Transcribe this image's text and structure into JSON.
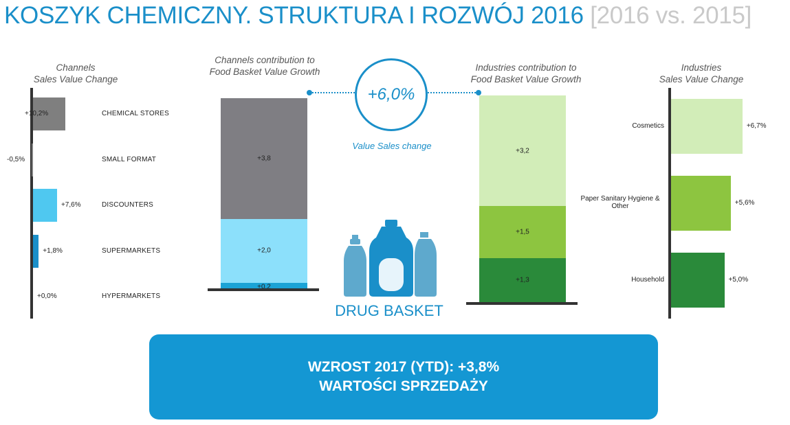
{
  "title": {
    "main": "KOSZYK CHEMICZNY. STRUKTURA I ROZWÓJ 2016",
    "sub": "[2016 vs. 2015]"
  },
  "chart_data": [
    {
      "type": "bar",
      "orientation": "horizontal",
      "title": "Channels\nSales Value Change",
      "categories": [
        "CHEMICAL STORES",
        "SMALL FORMAT",
        "DISCOUNTERS",
        "SUPERMARKETS",
        "HYPERMARKETS"
      ],
      "values": [
        10.2,
        -0.5,
        7.6,
        1.8,
        0.0
      ],
      "labels": [
        "+10,2%",
        "-0,5%",
        "+7,6%",
        "+1,8%",
        "+0,0%"
      ],
      "colors": [
        "#7f7f7f",
        "#7f7f7f",
        "#4fc8f0",
        "#1a8fc9",
        "#1a8fc9"
      ],
      "xlim": [
        -1,
        30
      ]
    },
    {
      "type": "bar",
      "stacked": true,
      "title": "Channels contribution to\nFood Basket Value Growth",
      "series": [
        {
          "values": [
            3.8
          ],
          "label": "+3,8",
          "color": "#7f7e83"
        },
        {
          "values": [
            2.0
          ],
          "label": "+2,0",
          "color": "#8ce0fb"
        },
        {
          "values": [
            0.2
          ],
          "label": "+0,2",
          "color": "#1ba3d6"
        }
      ],
      "ylim": [
        0,
        6
      ]
    },
    {
      "type": "bar",
      "stacked": true,
      "title": "Industries contribution to\nFood Basket Value Growth",
      "series": [
        {
          "values": [
            3.2
          ],
          "label": "+3,2",
          "color": "#d2edb8"
        },
        {
          "values": [
            1.5
          ],
          "label": "+1,5",
          "color": "#8dc540"
        },
        {
          "values": [
            1.3
          ],
          "label": "+1,3",
          "color": "#2a8a3a"
        }
      ],
      "ylim": [
        0,
        6
      ]
    },
    {
      "type": "bar",
      "orientation": "horizontal",
      "title": "Industries\nSales Value Change",
      "categories": [
        "Cosmetics",
        "Paper Sanitary Hygiene & Other",
        "Household"
      ],
      "values": [
        6.7,
        5.6,
        5.0
      ],
      "labels": [
        "+6,7%",
        "+5,6%",
        "+5,0%"
      ],
      "colors": [
        "#d2edb8",
        "#8dc540",
        "#2a8a3a"
      ],
      "xlim": [
        0,
        6.7
      ]
    }
  ],
  "center": {
    "value": "+6,0%",
    "caption": "Value Sales change",
    "basket_label": "DRUG BASKET",
    "icon": "detergent-bottles-icon",
    "accent": "#1a8fc9"
  },
  "banner": {
    "line1": "WZROST 2017 (YTD): +3,8%",
    "line2": "WARTOŚCI SPRZEDAŻY",
    "color": "#1497d3"
  }
}
